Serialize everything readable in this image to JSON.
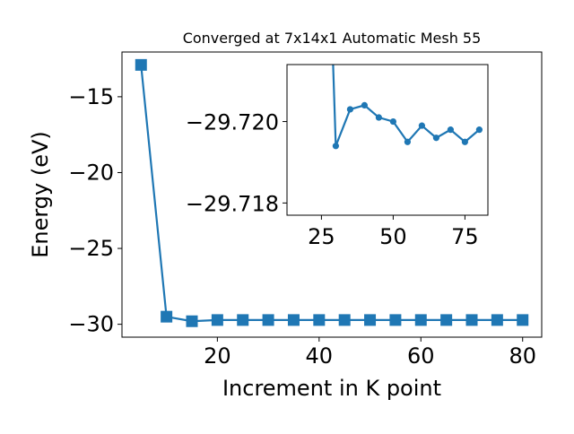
{
  "chart_data": [
    {
      "type": "line",
      "title": "Converged at 7x14x1 Automatic Mesh 55",
      "xlabel": "Increment in K point",
      "ylabel": "Energy (eV)",
      "xlim": [
        1.25,
        83.75
      ],
      "ylim": [
        -30.85,
        -12.05
      ],
      "x_ticks": [
        20,
        40,
        60,
        80
      ],
      "x_tick_labels": [
        "20",
        "40",
        "60",
        "80"
      ],
      "y_ticks": [
        -15,
        -20,
        -25,
        -30
      ],
      "y_tick_labels": [
        "−15",
        "−20",
        "−25",
        "−30"
      ],
      "marker": "square",
      "color": "#1f77b4",
      "grid": false,
      "series": [
        {
          "x": [
            5,
            10,
            15,
            20,
            25,
            30,
            35,
            40,
            45,
            50,
            55,
            60,
            65,
            70,
            75,
            80
          ],
          "y": [
            -12.9,
            -29.5,
            -29.8,
            -29.72,
            -29.72,
            -29.72,
            -29.72,
            -29.72,
            -29.72,
            -29.72,
            -29.72,
            -29.72,
            -29.72,
            -29.72,
            -29.72,
            -29.72
          ]
        }
      ]
    },
    {
      "type": "line",
      "title": "",
      "xlim": [
        13,
        83
      ],
      "ylim": [
        -29.7177,
        -29.7214
      ],
      "x_ticks": [
        25,
        50,
        75
      ],
      "x_tick_labels": [
        "25",
        "50",
        "75"
      ],
      "y_ticks": [
        -29.72,
        -29.718
      ],
      "y_tick_labels": [
        "−29.720",
        "−29.718"
      ],
      "marker": "circle",
      "color": "#1f77b4",
      "grid": false,
      "series": [
        {
          "x": [
            30,
            35,
            40,
            45,
            50,
            55,
            60,
            65,
            70,
            75,
            80
          ],
          "y": [
            -29.7194,
            -29.7203,
            -29.7204,
            -29.7201,
            -29.72,
            -29.7195,
            -29.7199,
            -29.7196,
            -29.7198,
            -29.7195,
            -29.7198
          ]
        }
      ]
    }
  ]
}
